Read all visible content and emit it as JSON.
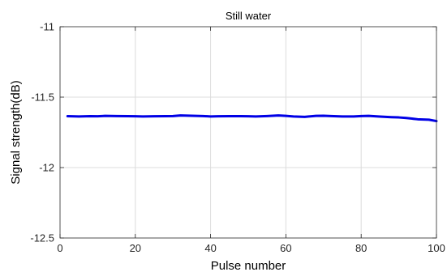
{
  "chart_data": {
    "type": "line",
    "title": "Still water",
    "xlabel": "Pulse number",
    "ylabel": "Signal strength(dB)",
    "xlim": [
      0,
      100
    ],
    "ylim": [
      -12.5,
      -11
    ],
    "xticks": [
      0,
      20,
      40,
      60,
      80,
      100
    ],
    "yticks": [
      -12.5,
      -12,
      -11.5,
      -11
    ],
    "xtick_labels": [
      "0",
      "20",
      "40",
      "60",
      "80",
      "100"
    ],
    "ytick_labels": [
      "-12.5",
      "-12",
      "-11.5",
      "-11"
    ],
    "grid": true,
    "series": [
      {
        "color": "#0000e6",
        "x": [
          2,
          5,
          8,
          10,
          12,
          15,
          18,
          20,
          22,
          25,
          28,
          30,
          32,
          35,
          38,
          40,
          42,
          45,
          48,
          50,
          52,
          55,
          58,
          60,
          62,
          65,
          68,
          70,
          72,
          75,
          78,
          80,
          82,
          85,
          88,
          90,
          92,
          95,
          98,
          100
        ],
        "y": [
          -11.635,
          -11.637,
          -11.635,
          -11.636,
          -11.633,
          -11.634,
          -11.635,
          -11.636,
          -11.637,
          -11.636,
          -11.635,
          -11.634,
          -11.63,
          -11.632,
          -11.634,
          -11.637,
          -11.636,
          -11.635,
          -11.635,
          -11.636,
          -11.637,
          -11.634,
          -11.63,
          -11.633,
          -11.637,
          -11.64,
          -11.633,
          -11.632,
          -11.634,
          -11.637,
          -11.637,
          -11.634,
          -11.633,
          -11.638,
          -11.642,
          -11.644,
          -11.648,
          -11.657,
          -11.66,
          -11.67
        ]
      }
    ]
  }
}
